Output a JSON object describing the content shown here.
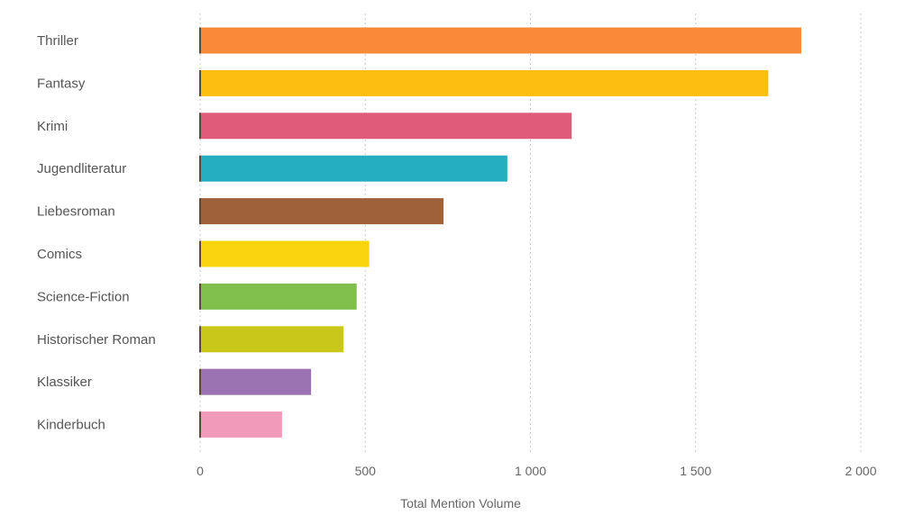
{
  "chart_data": {
    "type": "bar",
    "orientation": "horizontal",
    "title": "",
    "xlabel": "Total Mention Volume",
    "ylabel": "",
    "xlim": [
      0,
      2000
    ],
    "ticks": [
      0,
      500,
      1000,
      1500,
      2000
    ],
    "tick_labels": [
      "0",
      "500",
      "1 000",
      "1 500",
      "2 000"
    ],
    "grid": true,
    "categories": [
      "Thriller",
      "Fantasy",
      "Krimi",
      "Jugendliteratur",
      "Liebesroman",
      "Comics",
      "Science-Fiction",
      "Historischer Roman",
      "Klassiker",
      "Kinderbuch"
    ],
    "values": [
      1820,
      1720,
      1125,
      930,
      737,
      512,
      474,
      434,
      336,
      248
    ],
    "colors": [
      "#fa8a3a",
      "#febe10",
      "#e05a7a",
      "#25adc0",
      "#9e613a",
      "#fad40f",
      "#80bf4b",
      "#c9c81a",
      "#9c73b2",
      "#f29ab9"
    ]
  }
}
